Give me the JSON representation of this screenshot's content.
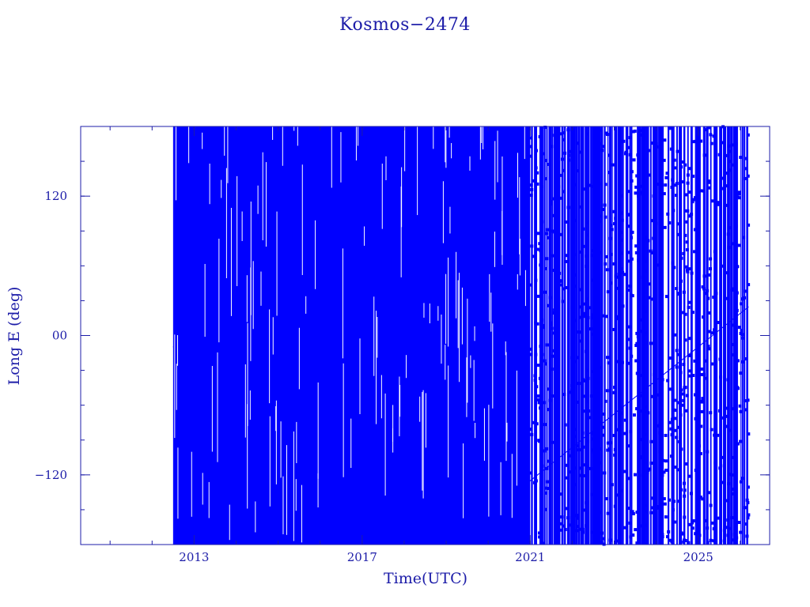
{
  "chart_data": {
    "type": "scatter",
    "title": "Kosmos−2474",
    "xlabel": "Time(UTC)",
    "ylabel": "Long E (deg)",
    "xlim": [
      2010.3,
      2026.7
    ],
    "ylim": [
      -180,
      180
    ],
    "x_ticks": [
      {
        "value": 2013,
        "label": "2013"
      },
      {
        "value": 2017,
        "label": "2017"
      },
      {
        "value": 2021,
        "label": "2021"
      },
      {
        "value": 2025,
        "label": "2025"
      }
    ],
    "y_ticks": [
      {
        "value": 120,
        "label": "120"
      },
      {
        "value": 0,
        "label": "00"
      },
      {
        "value": -120,
        "label": "−120"
      }
    ],
    "x_minor_step": 1,
    "y_minor_step": 30,
    "grid": false,
    "marker_color": "#0000ff",
    "axis_color": "#1c1ca8",
    "data_x_range": [
      2012.5,
      2026.2
    ],
    "dense_coverage_until": 2021.0,
    "drift_rate_deg_per_day": 34.3
  }
}
